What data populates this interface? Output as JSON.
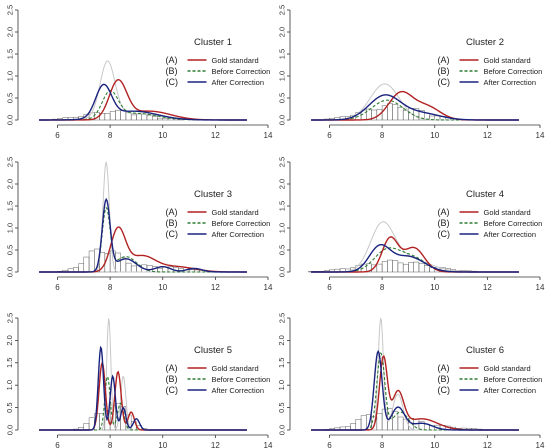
{
  "figure": {
    "legend_rows": [
      {
        "key": "(A)",
        "label": "Gold standard",
        "color": "#b22222",
        "dash": "solid"
      },
      {
        "key": "(B)",
        "label": "Before Correction",
        "color": "#2e7d32",
        "dash": "dashed"
      },
      {
        "key": "(C)",
        "label": "After Correction",
        "color": "#1a237e",
        "dash": "solid"
      }
    ],
    "colors": {
      "gold": "#b22222",
      "before": "#2e7d32",
      "after": "#1a237e",
      "gray_density": "#c8c8c8",
      "histogram": "#555555"
    }
  },
  "chart_data": [
    {
      "type": "area",
      "title": "Cluster 1",
      "xlim": [
        4.5,
        14
      ],
      "ylim": [
        0,
        2.5
      ],
      "xticks": [
        6,
        8,
        10,
        12,
        14
      ],
      "yticks": [
        0.0,
        0.5,
        1.0,
        1.5,
        2.0,
        2.5
      ],
      "gray_peaks": [
        [
          7.9,
          1.25,
          0.28
        ],
        [
          8.9,
          0.15,
          1.0
        ]
      ],
      "histogram_peaks": [
        [
          8.2,
          0.18,
          1.1
        ]
      ],
      "series": [
        {
          "name": "Gold standard",
          "peaks": [
            [
              8.3,
              0.85,
              0.33
            ],
            [
              9.5,
              0.2,
              0.8
            ]
          ]
        },
        {
          "name": "Before Correction",
          "peaks": [
            [
              8.0,
              0.6,
              0.3
            ],
            [
              9.0,
              0.15,
              0.8
            ]
          ]
        },
        {
          "name": "After Correction",
          "peaks": [
            [
              7.75,
              0.72,
              0.3
            ],
            [
              8.9,
              0.2,
              0.9
            ]
          ]
        }
      ]
    },
    {
      "type": "area",
      "title": "Cluster 2",
      "xlim": [
        4.5,
        14
      ],
      "ylim": [
        0,
        2.5
      ],
      "xticks": [
        6,
        8,
        10,
        12,
        14
      ],
      "yticks": [
        0.0,
        0.5,
        1.0,
        1.5,
        2.0,
        2.5
      ],
      "gray_peaks": [
        [
          8.1,
          0.82,
          0.55
        ]
      ],
      "histogram_peaks": [
        [
          8.4,
          0.3,
          1.1
        ]
      ],
      "series": [
        {
          "name": "Gold standard",
          "peaks": [
            [
              8.7,
              0.6,
              0.45
            ],
            [
              9.7,
              0.3,
              0.5
            ]
          ]
        },
        {
          "name": "Before Correction",
          "peaks": [
            [
              8.2,
              0.45,
              0.6
            ]
          ]
        },
        {
          "name": "After Correction",
          "peaks": [
            [
              8.1,
              0.55,
              0.6
            ],
            [
              9.5,
              0.15,
              0.7
            ]
          ]
        }
      ]
    },
    {
      "type": "area",
      "title": "Cluster 3",
      "xlim": [
        4.5,
        14
      ],
      "ylim": [
        0,
        2.5
      ],
      "xticks": [
        6,
        8,
        10,
        12,
        14
      ],
      "yticks": [
        0.0,
        0.5,
        1.0,
        1.5,
        2.0,
        2.5
      ],
      "gray_peaks": [
        [
          7.85,
          2.5,
          0.12
        ]
      ],
      "histogram_peaks": [
        [
          7.7,
          0.45,
          0.6
        ],
        [
          9.5,
          0.12,
          1.2
        ]
      ],
      "series": [
        {
          "name": "Gold standard",
          "peaks": [
            [
              8.3,
              0.95,
              0.28
            ],
            [
              9.2,
              0.35,
              0.5
            ],
            [
              10.5,
              0.12,
              0.7
            ]
          ]
        },
        {
          "name": "Before Correction",
          "peaks": [
            [
              7.85,
              1.4,
              0.15
            ],
            [
              8.6,
              0.35,
              0.4
            ]
          ]
        },
        {
          "name": "After Correction",
          "peaks": [
            [
              7.85,
              1.6,
              0.15
            ],
            [
              8.6,
              0.3,
              0.4
            ],
            [
              10.0,
              0.12,
              0.3
            ],
            [
              11.2,
              0.08,
              0.3
            ]
          ]
        }
      ]
    },
    {
      "type": "area",
      "title": "Cluster 4",
      "xlim": [
        4.5,
        14
      ],
      "ylim": [
        0,
        2.5
      ],
      "xticks": [
        6,
        8,
        10,
        12,
        14
      ],
      "yticks": [
        0.0,
        0.5,
        1.0,
        1.5,
        2.0,
        2.5
      ],
      "gray_peaks": [
        [
          8.0,
          1.0,
          0.45
        ],
        [
          9.0,
          0.3,
          0.8
        ]
      ],
      "histogram_peaks": [
        [
          8.5,
          0.22,
          1.3
        ]
      ],
      "series": [
        {
          "name": "Gold standard",
          "peaks": [
            [
              8.3,
              0.75,
              0.3
            ],
            [
              9.2,
              0.55,
              0.4
            ]
          ]
        },
        {
          "name": "Before Correction",
          "peaks": [
            [
              8.2,
              0.5,
              0.5
            ],
            [
              9.2,
              0.3,
              0.5
            ]
          ]
        },
        {
          "name": "After Correction",
          "peaks": [
            [
              7.9,
              0.55,
              0.4
            ],
            [
              9.0,
              0.35,
              0.6
            ]
          ]
        }
      ]
    },
    {
      "type": "area",
      "title": "Cluster 5",
      "xlim": [
        4.5,
        14
      ],
      "ylim": [
        0,
        2.5
      ],
      "xticks": [
        6,
        8,
        10,
        12,
        14
      ],
      "yticks": [
        0.0,
        0.5,
        1.0,
        1.5,
        2.0,
        2.5
      ],
      "gray_peaks": [
        [
          7.95,
          2.5,
          0.08
        ],
        [
          8.5,
          1.2,
          0.1
        ]
      ],
      "histogram_peaks": [
        [
          7.9,
          0.45,
          0.5
        ],
        [
          8.6,
          0.25,
          0.3
        ]
      ],
      "series": [
        {
          "name": "Gold standard",
          "peaks": [
            [
              7.7,
              1.5,
              0.12
            ],
            [
              8.3,
              1.3,
              0.12
            ],
            [
              8.8,
              0.4,
              0.12
            ]
          ]
        },
        {
          "name": "Before Correction",
          "peaks": [
            [
              7.9,
              1.2,
              0.1
            ],
            [
              8.4,
              0.6,
              0.12
            ]
          ]
        },
        {
          "name": "After Correction",
          "peaks": [
            [
              7.65,
              1.85,
              0.1
            ],
            [
              8.1,
              1.2,
              0.1
            ],
            [
              8.5,
              0.5,
              0.1
            ],
            [
              9.0,
              0.25,
              0.12
            ]
          ]
        }
      ]
    },
    {
      "type": "area",
      "title": "Cluster 6",
      "xlim": [
        4.5,
        14
      ],
      "ylim": [
        0,
        2.5
      ],
      "xticks": [
        6,
        8,
        10,
        12,
        14
      ],
      "yticks": [
        0.0,
        0.5,
        1.0,
        1.5,
        2.0,
        2.5
      ],
      "gray_peaks": [
        [
          7.95,
          2.5,
          0.1
        ],
        [
          8.6,
          0.8,
          0.2
        ]
      ],
      "histogram_peaks": [
        [
          8.0,
          0.35,
          0.8
        ],
        [
          9.5,
          0.1,
          1.2
        ]
      ],
      "series": [
        {
          "name": "Gold standard",
          "peaks": [
            [
              8.05,
              1.6,
              0.15
            ],
            [
              8.6,
              0.8,
              0.22
            ],
            [
              9.5,
              0.25,
              0.6
            ]
          ]
        },
        {
          "name": "Before Correction",
          "peaks": [
            [
              7.95,
              1.7,
              0.15
            ],
            [
              8.7,
              0.4,
              0.3
            ]
          ]
        },
        {
          "name": "After Correction",
          "peaks": [
            [
              7.85,
              1.75,
              0.15
            ],
            [
              8.6,
              0.5,
              0.25
            ],
            [
              9.5,
              0.15,
              0.4
            ]
          ]
        }
      ]
    }
  ]
}
